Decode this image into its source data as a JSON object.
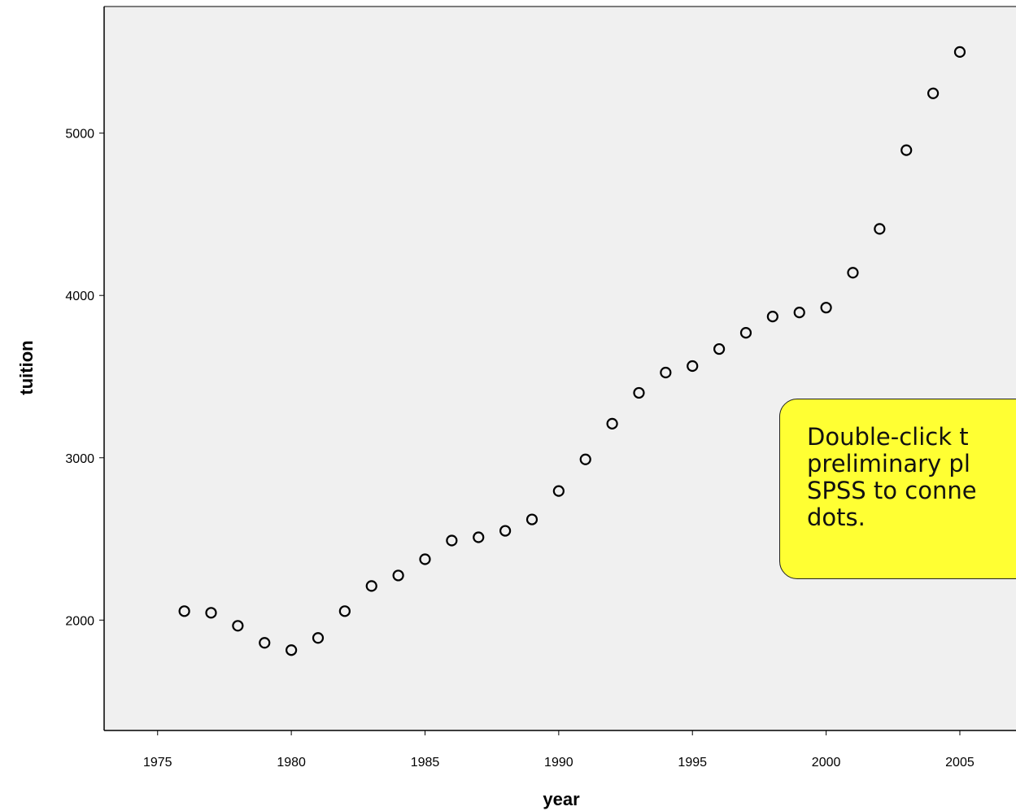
{
  "chart_data": {
    "type": "scatter",
    "xlabel": "year",
    "ylabel": "tuition",
    "xlim": [
      1973,
      2007.1
    ],
    "ylim": [
      1320,
      5780
    ],
    "x_ticks": [
      "1975",
      "1980",
      "1985",
      "1990",
      "1995",
      "2000",
      "2005"
    ],
    "y_ticks": [
      "2000",
      "3000",
      "4000",
      "5000"
    ],
    "grid": false,
    "marker": "open-circle",
    "colors": {
      "plot_bg": "#f0f0f0",
      "marker": "#000000",
      "callout_bg": "#ffff33"
    },
    "points": [
      {
        "x": 1976,
        "y": 2055
      },
      {
        "x": 1977,
        "y": 2045
      },
      {
        "x": 1978,
        "y": 1965
      },
      {
        "x": 1979,
        "y": 1860
      },
      {
        "x": 1980,
        "y": 1815
      },
      {
        "x": 1981,
        "y": 1890
      },
      {
        "x": 1982,
        "y": 2055
      },
      {
        "x": 1983,
        "y": 2210
      },
      {
        "x": 1984,
        "y": 2275
      },
      {
        "x": 1985,
        "y": 2375
      },
      {
        "x": 1986,
        "y": 2490
      },
      {
        "x": 1987,
        "y": 2510
      },
      {
        "x": 1988,
        "y": 2550
      },
      {
        "x": 1989,
        "y": 2620
      },
      {
        "x": 1990,
        "y": 2795
      },
      {
        "x": 1991,
        "y": 2990
      },
      {
        "x": 1992,
        "y": 3210
      },
      {
        "x": 1993,
        "y": 3400
      },
      {
        "x": 1994,
        "y": 3525
      },
      {
        "x": 1995,
        "y": 3565
      },
      {
        "x": 1996,
        "y": 3670
      },
      {
        "x": 1997,
        "y": 3770
      },
      {
        "x": 1998,
        "y": 3870
      },
      {
        "x": 1999,
        "y": 3895
      },
      {
        "x": 2000,
        "y": 3925
      },
      {
        "x": 2001,
        "y": 4140
      },
      {
        "x": 2002,
        "y": 4410
      },
      {
        "x": 2003,
        "y": 4895
      },
      {
        "x": 2004,
        "y": 5245
      },
      {
        "x": 2005,
        "y": 5500
      }
    ]
  },
  "callout": {
    "lines": [
      "Double-click t",
      "preliminary pl",
      "SPSS to conne",
      "dots."
    ]
  }
}
